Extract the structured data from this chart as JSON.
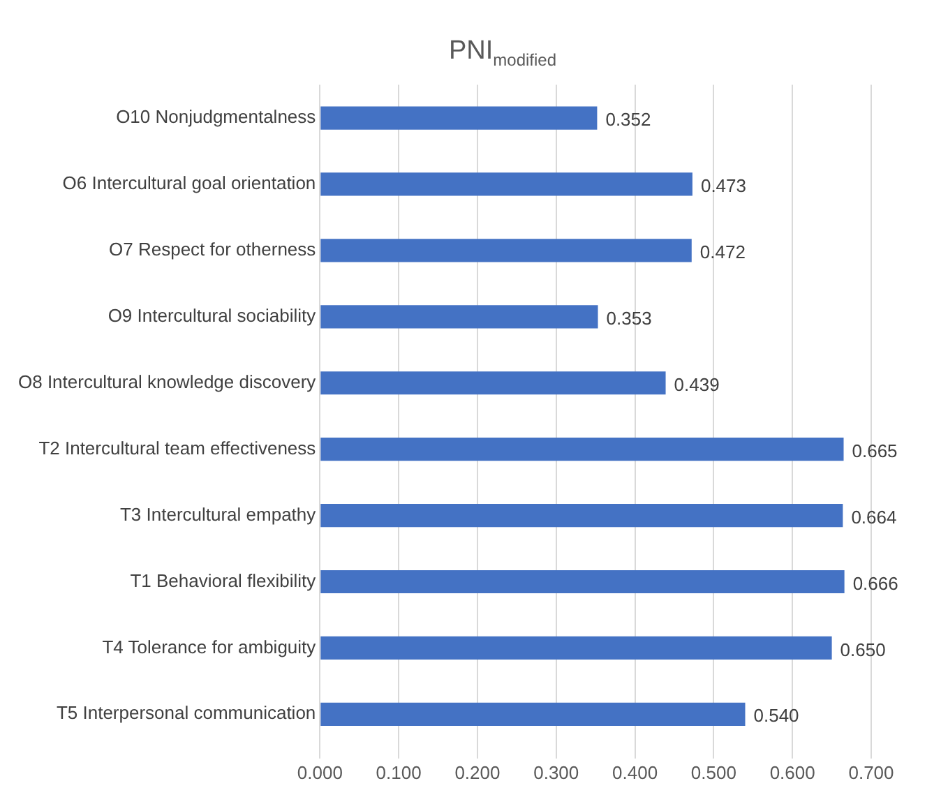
{
  "chart_data": {
    "type": "bar",
    "orientation": "horizontal",
    "title": "PNI$_{modified}$",
    "categories": [
      "O10 Nonjudgmentalness",
      "O6 Intercultural goal orientation",
      "O7 Respect for otherness",
      "O9 Intercultural sociability",
      "O8 Intercultural knowledge discovery",
      "T2 Intercultural team effectiveness",
      "T3 Intercultural empathy",
      "T1 Behavioral flexibility",
      "T4 Tolerance for ambiguity",
      "T5 Interpersonal communication"
    ],
    "values": [
      0.352,
      0.473,
      0.472,
      0.353,
      0.439,
      0.665,
      0.664,
      0.666,
      0.65,
      0.54
    ],
    "value_labels": [
      "0.352",
      "0.473",
      "0.472",
      "0.353",
      "0.439",
      "0.665",
      "0.664",
      "0.666",
      "0.650",
      "0.540"
    ],
    "color": "#4472c4",
    "xlim": [
      0,
      0.7
    ],
    "xticks": [
      {
        "value": 0,
        "label": "0.000"
      },
      {
        "value": 0.1,
        "label": "0.100"
      },
      {
        "value": 0.2,
        "label": "0.200"
      },
      {
        "value": 0.3,
        "label": "0.300"
      },
      {
        "value": 0.4,
        "label": "0.400"
      },
      {
        "value": 0.5,
        "label": "0.500"
      },
      {
        "value": 0.6,
        "label": "0.600"
      },
      {
        "value": 0.7,
        "label": "0.700"
      }
    ],
    "grid": "x",
    "legend": false
  }
}
